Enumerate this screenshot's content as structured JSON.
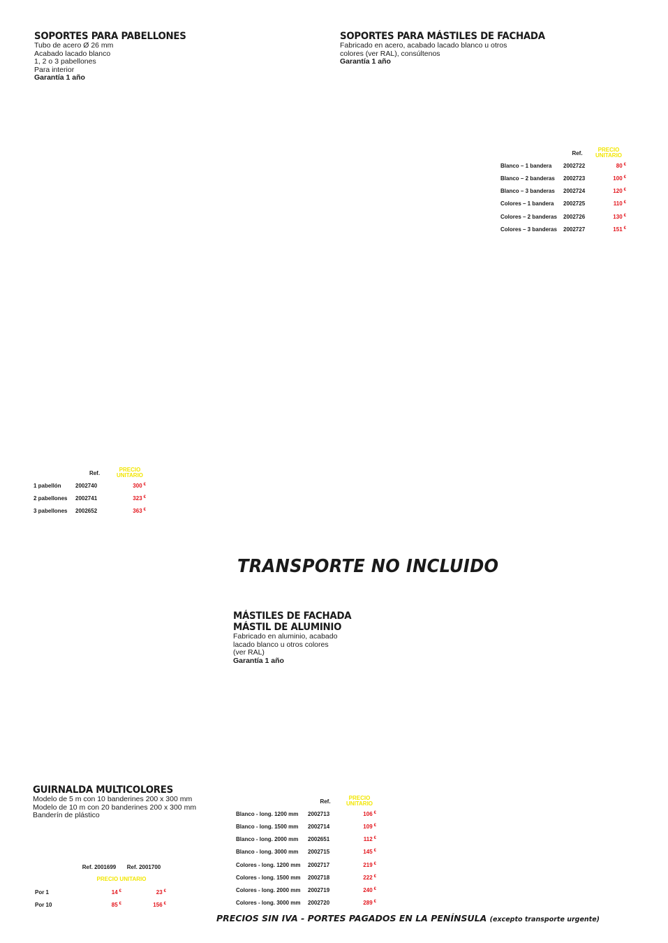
{
  "pabellones": {
    "title": "SOPORTES PARA PABELLONES",
    "lines": [
      "Tubo de acero Ø 26 mm",
      "Acabado lacado blanco",
      "1, 2 o 3 pabellones",
      "Para interior"
    ],
    "warranty": "Garantía 1 año",
    "table": {
      "ref_header": "Ref.",
      "price_header_1": "PRECIO",
      "price_header_2": "UNITARIO",
      "currency": "€",
      "rows": [
        {
          "label": "1 pabellón",
          "ref": "2002740",
          "price": "300"
        },
        {
          "label": "2 pabellones",
          "ref": "2002741",
          "price": "323"
        },
        {
          "label": "3 pabellones",
          "ref": "2002652",
          "price": "363"
        }
      ]
    }
  },
  "mastiles_fachada_soportes": {
    "title": "SOPORTES PARA MÁSTILES DE FACHADA",
    "lines": [
      "Fabricado en acero, acabado lacado blanco u otros",
      "colores (ver RAL), consúltenos"
    ],
    "warranty": "Garantía 1 año",
    "table": {
      "ref_header": "Ref.",
      "price_header_1": "PRECIO",
      "price_header_2": "UNITARIO",
      "currency": "€",
      "rows": [
        {
          "label": "Blanco – 1 bandera",
          "ref": "2002722",
          "price": "80"
        },
        {
          "label": "Blanco – 2 banderas",
          "ref": "2002723",
          "price": "100"
        },
        {
          "label": "Blanco – 3 banderas",
          "ref": "2002724",
          "price": "120"
        },
        {
          "label": "Colores – 1 bandera",
          "ref": "2002725",
          "price": "110"
        },
        {
          "label": "Colores – 2 banderas",
          "ref": "2002726",
          "price": "130"
        },
        {
          "label": "Colores – 3 banderas",
          "ref": "2002727",
          "price": "151"
        }
      ]
    }
  },
  "transporte": "TRANSPORTE NO INCLUIDO",
  "mastil_aluminio": {
    "title_1": "MÁSTILES DE FACHADA",
    "title_2": "MÁSTIL DE ALUMINIO",
    "lines": [
      "Fabricado en aluminio, acabado",
      "lacado blanco u otros colores",
      "(ver RAL)"
    ],
    "warranty": "Garantía 1 año",
    "table": {
      "ref_header": "Ref.",
      "price_header_1": "PRECIO",
      "price_header_2": "UNITARIO",
      "currency": "€",
      "rows": [
        {
          "label": "Blanco - long. 1200 mm",
          "ref": "2002713",
          "price": "106"
        },
        {
          "label": "Blanco - long. 1500 mm",
          "ref": "2002714",
          "price": "109"
        },
        {
          "label": "Blanco - long. 2000 mm",
          "ref": "2002651",
          "price": "112"
        },
        {
          "label": "Blanco - long. 3000 mm",
          "ref": "2002715",
          "price": "145"
        },
        {
          "label": "Colores - long. 1200 mm",
          "ref": "2002717",
          "price": "219"
        },
        {
          "label": "Colores - long. 1500 mm",
          "ref": "2002718",
          "price": "222"
        },
        {
          "label": "Colores - long. 2000 mm",
          "ref": "2002719",
          "price": "240"
        },
        {
          "label": "Colores - long. 3000 mm",
          "ref": "2002720",
          "price": "289"
        }
      ]
    }
  },
  "guirnalda": {
    "title": "GUIRNALDA MULTICOLORES",
    "lines": [
      "Modelo de 5 m con 10 banderines 200 x 300 mm",
      "Modelo de 10 m con 20 banderines 200 x 300 mm",
      "Banderín de plástico"
    ],
    "table": {
      "ref_header_1": "Ref. 2001699",
      "ref_header_2": "Ref. 2001700",
      "price_header": "PRECIO UNITARIO",
      "currency": "€",
      "rows": [
        {
          "label": "Por 1",
          "price_1": "14",
          "price_2": "23"
        },
        {
          "label": "Por 10",
          "price_1": "85",
          "price_2": "156"
        }
      ]
    }
  },
  "footer": {
    "main": "PRECIOS SIN IVA - PORTES PAGADOS EN LA PENÍNSULA",
    "small": "(excepto transporte urgente)"
  },
  "colors": {
    "price": "#e3141b",
    "price_header": "#f2e600",
    "text": "#1a1a1a"
  }
}
